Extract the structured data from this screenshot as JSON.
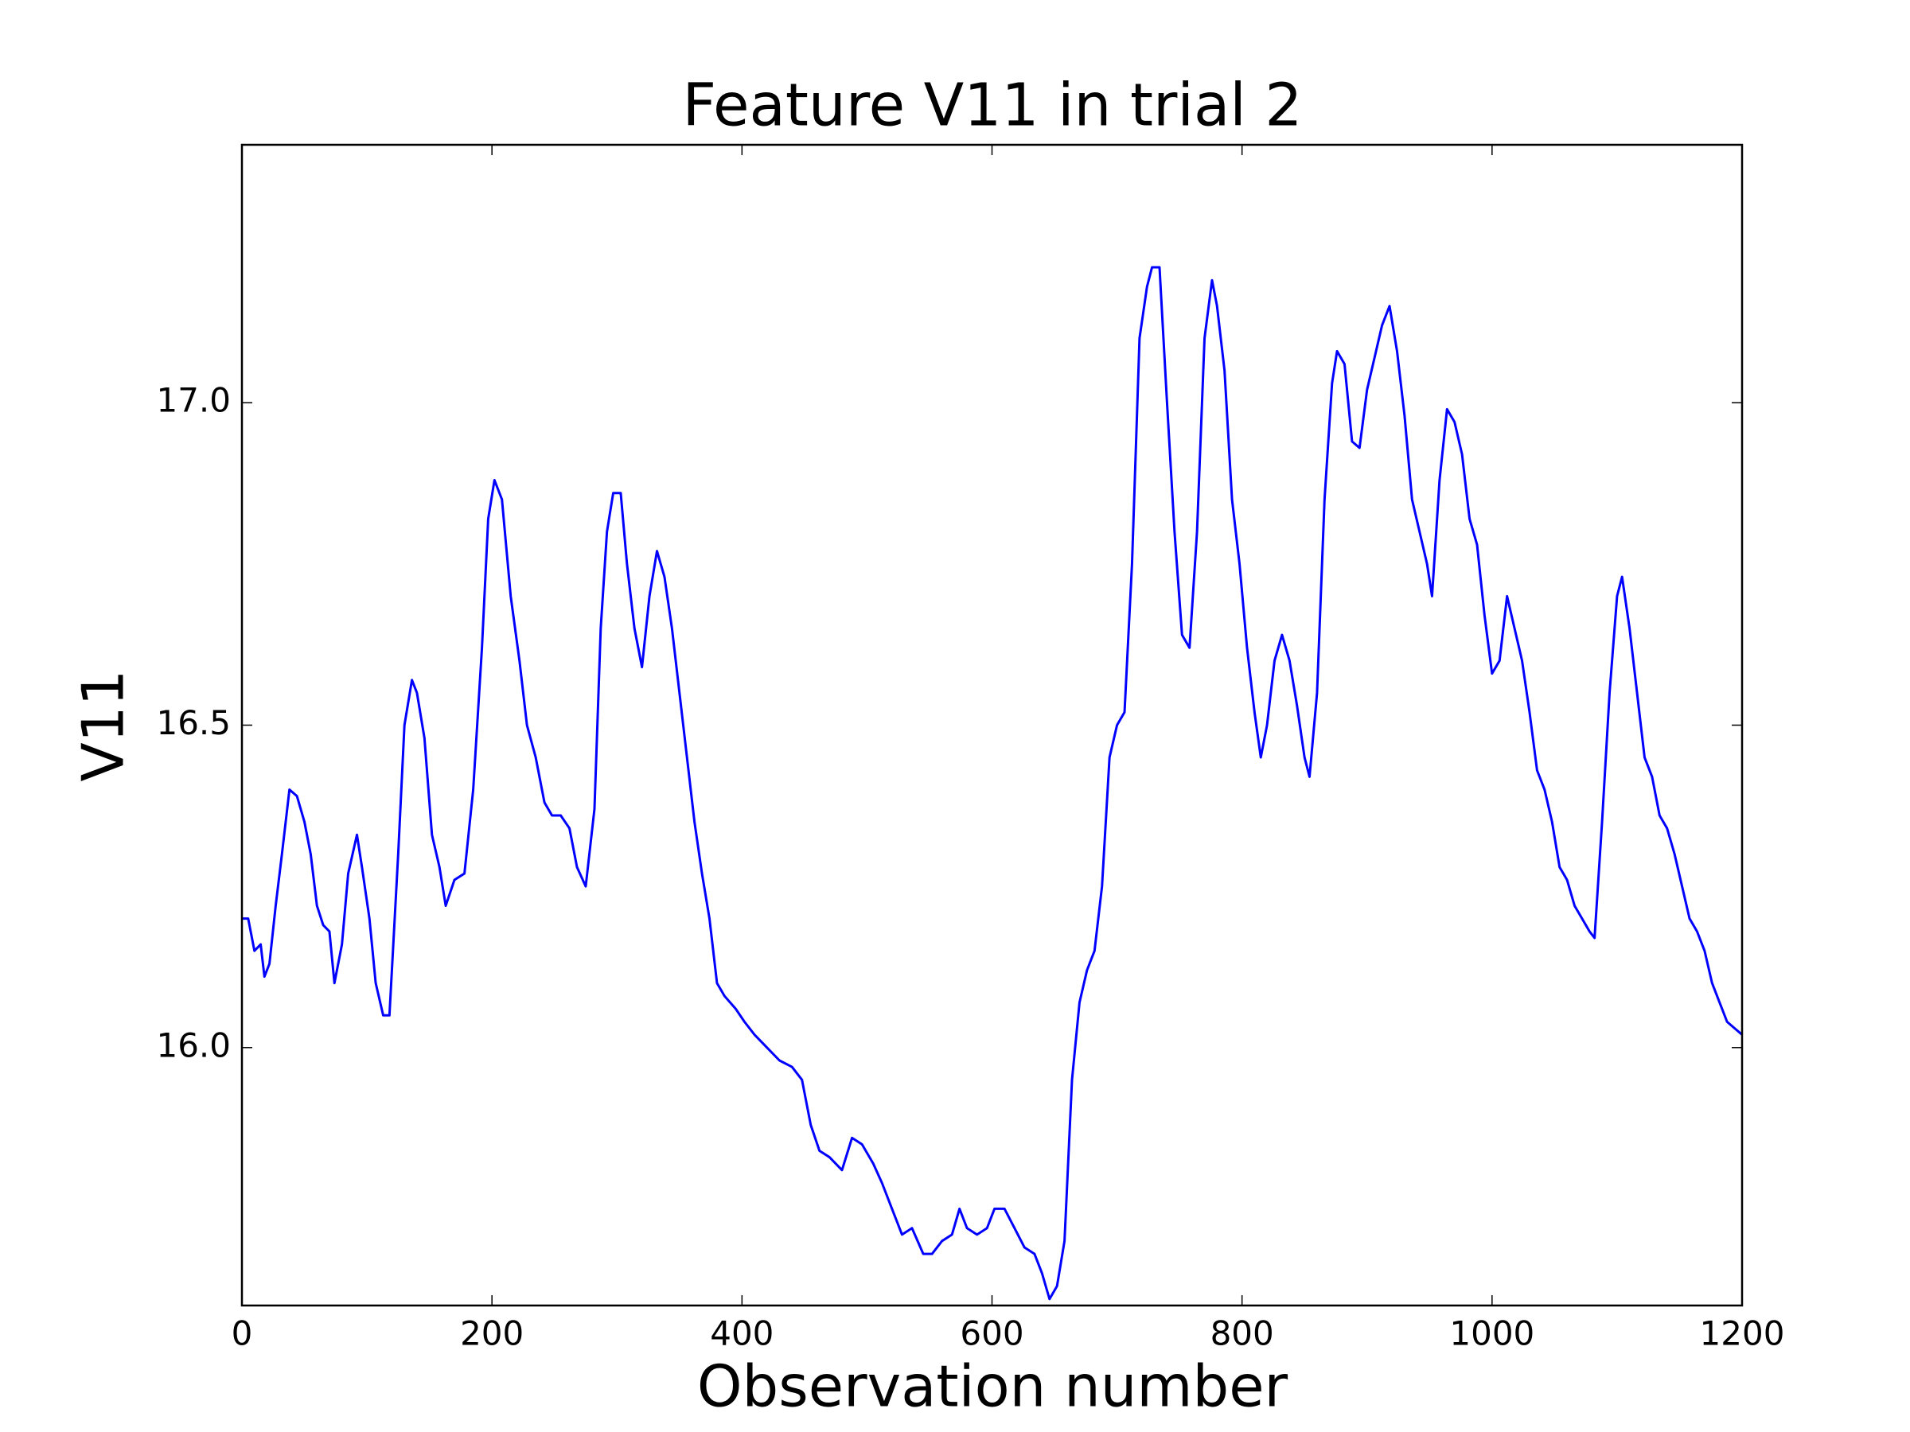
{
  "chart_data": {
    "type": "line",
    "title": "Feature V11 in trial 2",
    "x_label": "Observation number",
    "y_label": "V11",
    "x": [
      0,
      5,
      10,
      15,
      18,
      22,
      27,
      32,
      38,
      44,
      50,
      55,
      60,
      65,
      70,
      74,
      80,
      85,
      92,
      96,
      102,
      107,
      113,
      118,
      125,
      130,
      136,
      140,
      146,
      152,
      158,
      163,
      170,
      178,
      185,
      192,
      197,
      202,
      208,
      215,
      222,
      228,
      235,
      242,
      248,
      255,
      262,
      268,
      275,
      282,
      287,
      292,
      297,
      303,
      308,
      314,
      320,
      326,
      332,
      338,
      344,
      350,
      356,
      362,
      368,
      374,
      380,
      386,
      395,
      402,
      410,
      420,
      430,
      440,
      448,
      455,
      462,
      470,
      480,
      488,
      496,
      505,
      512,
      520,
      528,
      536,
      545,
      552,
      560,
      568,
      574,
      580,
      588,
      596,
      602,
      610,
      618,
      626,
      634,
      640,
      646,
      652,
      658,
      664,
      670,
      676,
      682,
      688,
      694,
      700,
      706,
      712,
      718,
      724,
      728,
      734,
      740,
      746,
      752,
      758,
      764,
      770,
      776,
      780,
      786,
      792,
      798,
      804,
      810,
      815,
      820,
      826,
      832,
      838,
      844,
      850,
      854,
      860,
      866,
      872,
      876,
      882,
      888,
      894,
      900,
      906,
      912,
      918,
      924,
      930,
      936,
      942,
      948,
      952,
      958,
      964,
      970,
      976,
      982,
      988,
      994,
      1000,
      1006,
      1012,
      1018,
      1024,
      1030,
      1036,
      1042,
      1048,
      1054,
      1060,
      1066,
      1072,
      1078,
      1082,
      1088,
      1094,
      1100,
      1104,
      1110,
      1116,
      1122,
      1128,
      1134,
      1140,
      1146,
      1152,
      1158,
      1164,
      1170,
      1176,
      1182,
      1188,
      1194,
      1200
    ],
    "series": [
      {
        "name": "V11",
        "color": "#0000ff",
        "values": [
          16.2,
          16.2,
          16.15,
          16.16,
          16.11,
          16.13,
          16.22,
          16.3,
          16.4,
          16.39,
          16.35,
          16.3,
          16.22,
          16.19,
          16.18,
          16.1,
          16.16,
          16.27,
          16.33,
          16.28,
          16.2,
          16.1,
          16.05,
          16.05,
          16.3,
          16.5,
          16.57,
          16.55,
          16.48,
          16.33,
          16.28,
          16.22,
          16.26,
          16.27,
          16.4,
          16.62,
          16.82,
          16.88,
          16.85,
          16.7,
          16.6,
          16.5,
          16.45,
          16.38,
          16.36,
          16.36,
          16.34,
          16.28,
          16.25,
          16.37,
          16.65,
          16.8,
          16.86,
          16.86,
          16.75,
          16.65,
          16.59,
          16.7,
          16.77,
          16.73,
          16.65,
          16.55,
          16.45,
          16.35,
          16.27,
          16.2,
          16.1,
          16.08,
          16.06,
          16.04,
          16.02,
          16.0,
          15.98,
          15.97,
          15.95,
          15.88,
          15.84,
          15.83,
          15.81,
          15.86,
          15.85,
          15.82,
          15.79,
          15.75,
          15.71,
          15.72,
          15.68,
          15.68,
          15.7,
          15.71,
          15.75,
          15.72,
          15.71,
          15.72,
          15.75,
          15.75,
          15.72,
          15.69,
          15.68,
          15.65,
          15.61,
          15.63,
          15.7,
          15.95,
          16.07,
          16.12,
          16.15,
          16.25,
          16.45,
          16.5,
          16.52,
          16.75,
          17.1,
          17.18,
          17.21,
          17.21,
          17.0,
          16.8,
          16.64,
          16.62,
          16.8,
          17.1,
          17.19,
          17.15,
          17.05,
          16.85,
          16.75,
          16.62,
          16.52,
          16.45,
          16.5,
          16.6,
          16.64,
          16.6,
          16.53,
          16.45,
          16.42,
          16.55,
          16.85,
          17.03,
          17.08,
          17.06,
          16.94,
          16.93,
          17.02,
          17.07,
          17.12,
          17.15,
          17.08,
          16.98,
          16.85,
          16.8,
          16.75,
          16.7,
          16.88,
          16.99,
          16.97,
          16.92,
          16.82,
          16.78,
          16.67,
          16.58,
          16.6,
          16.7,
          16.65,
          16.6,
          16.52,
          16.43,
          16.4,
          16.35,
          16.28,
          16.26,
          16.22,
          16.2,
          16.18,
          16.17,
          16.35,
          16.55,
          16.7,
          16.73,
          16.65,
          16.55,
          16.45,
          16.42,
          16.36,
          16.34,
          16.3,
          16.25,
          16.2,
          16.18,
          16.15,
          16.1,
          16.07,
          16.04,
          16.03,
          16.02
        ]
      }
    ],
    "xlim": [
      0,
      1200
    ],
    "xticks": [
      0,
      200,
      400,
      600,
      800,
      1000,
      1200
    ],
    "ylim": [
      15.6,
      17.4
    ],
    "yticks": [
      {
        "value": 16,
        "label": "16.0"
      },
      16.5,
      {
        "value": 17,
        "label": "17.0"
      }
    ],
    "grid": false
  }
}
